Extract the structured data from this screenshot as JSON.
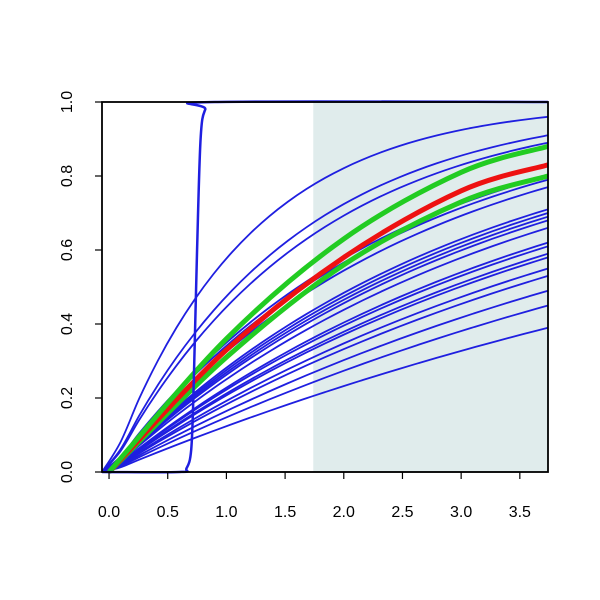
{
  "chart_data": {
    "type": "line",
    "title": "",
    "xlabel": "",
    "ylabel": "",
    "xlim": [
      -0.06,
      3.74
    ],
    "ylim": [
      0.0,
      1.0
    ],
    "x_ticks": [
      "0.0",
      "0.5",
      "1.0",
      "1.5",
      "2.0",
      "2.5",
      "3.0",
      "3.5"
    ],
    "x_tick_values": [
      0.0,
      0.5,
      1.0,
      1.5,
      2.0,
      2.5,
      3.0,
      3.5
    ],
    "y_ticks": [
      "0.0",
      "0.2",
      "0.4",
      "0.6",
      "0.8",
      "1.0"
    ],
    "y_tick_values": [
      0.0,
      0.2,
      0.4,
      0.6,
      0.8,
      1.0
    ],
    "grid": false,
    "shaded_region": {
      "x_from": 1.74,
      "x_to": 3.74,
      "color": "#e0ecec"
    },
    "colors": {
      "blue": "#1f1fe0",
      "red": "#ee1111",
      "green": "#22cc22",
      "shade": "#e0ecec"
    },
    "steep_curve": {
      "color": "blue",
      "points": [
        [
          -0.06,
          0.0
        ],
        [
          0.6,
          0.0
        ],
        [
          0.66,
          0.01
        ],
        [
          0.7,
          0.06
        ],
        [
          0.72,
          0.22
        ],
        [
          0.75,
          0.6
        ],
        [
          0.78,
          0.9
        ],
        [
          0.82,
          0.98
        ],
        [
          0.9,
          1.0
        ],
        [
          3.74,
          1.0
        ]
      ]
    },
    "blue_curve_endpoints": [
      0.39,
      0.45,
      0.49,
      0.53,
      0.55,
      0.58,
      0.59,
      0.61,
      0.62,
      0.66,
      0.68,
      0.69,
      0.7,
      0.71,
      0.77,
      0.79,
      0.8,
      0.89,
      0.91,
      0.96
    ],
    "series": [
      {
        "color": "green",
        "values_at": [
          0.0,
          1.0,
          2.0,
          3.0,
          3.74
        ],
        "values": [
          0.0,
          0.31,
          0.56,
          0.73,
          0.8
        ]
      },
      {
        "color": "red",
        "values_at": [
          0.0,
          1.0,
          2.0,
          3.0,
          3.74
        ],
        "values": [
          0.0,
          0.33,
          0.58,
          0.76,
          0.83
        ]
      },
      {
        "color": "green",
        "values_at": [
          0.0,
          1.0,
          2.0,
          3.0,
          3.74
        ],
        "values": [
          0.0,
          0.36,
          0.63,
          0.81,
          0.88
        ]
      }
    ]
  }
}
